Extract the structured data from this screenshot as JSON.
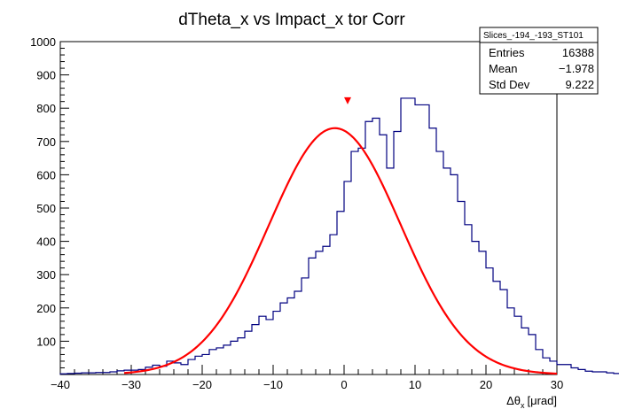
{
  "chart_data": {
    "type": "histogram",
    "title": "dTheta_x vs Impact_x tor Corr",
    "xlabel": "Δθ",
    "xlabel_sub": "x",
    "xlabel_unit": "[μrad]",
    "ylabel": "",
    "xlim": [
      -40,
      30
    ],
    "ylim": [
      0,
      1000
    ],
    "x_ticks": [
      -40,
      -30,
      -20,
      -10,
      0,
      10,
      20,
      30
    ],
    "x_tick_labels": [
      "−40",
      "−30",
      "−20",
      "−10",
      "0",
      "10",
      "20",
      "30"
    ],
    "y_ticks": [
      100,
      200,
      300,
      400,
      500,
      600,
      700,
      800,
      900,
      1000
    ],
    "grid": false,
    "histogram": {
      "bin_width": 1,
      "x_start": -40,
      "color": "#000080",
      "values": [
        2,
        3,
        4,
        5,
        5,
        6,
        6,
        8,
        11,
        13,
        13,
        15,
        22,
        28,
        25,
        40,
        35,
        30,
        45,
        55,
        60,
        75,
        80,
        88,
        100,
        110,
        130,
        150,
        175,
        165,
        190,
        215,
        230,
        250,
        290,
        350,
        370,
        385,
        420,
        490,
        580,
        670,
        680,
        760,
        770,
        720,
        620,
        730,
        830,
        830,
        810,
        810,
        740,
        670,
        620,
        600,
        520,
        450,
        400,
        370,
        320,
        280,
        255,
        200,
        175,
        140,
        120,
        75,
        50,
        40,
        30,
        30,
        20,
        15,
        10,
        8,
        8,
        5,
        3,
        2
      ]
    },
    "fit": {
      "type": "gaussian",
      "amplitude": 740,
      "mean": -1.3,
      "sigma": 9.3,
      "x_range": [
        -31,
        30
      ],
      "color": "#ff0000"
    },
    "marker": {
      "x": 0.5,
      "y": 822,
      "color": "#ff0000"
    },
    "stats_box": {
      "name": "Slices_-194_-193_ST101",
      "rows": [
        {
          "label": "Entries",
          "value": "16388"
        },
        {
          "label": "Mean",
          "value": "−1.978"
        },
        {
          "label": "Std Dev",
          "value": "9.222"
        }
      ]
    }
  }
}
